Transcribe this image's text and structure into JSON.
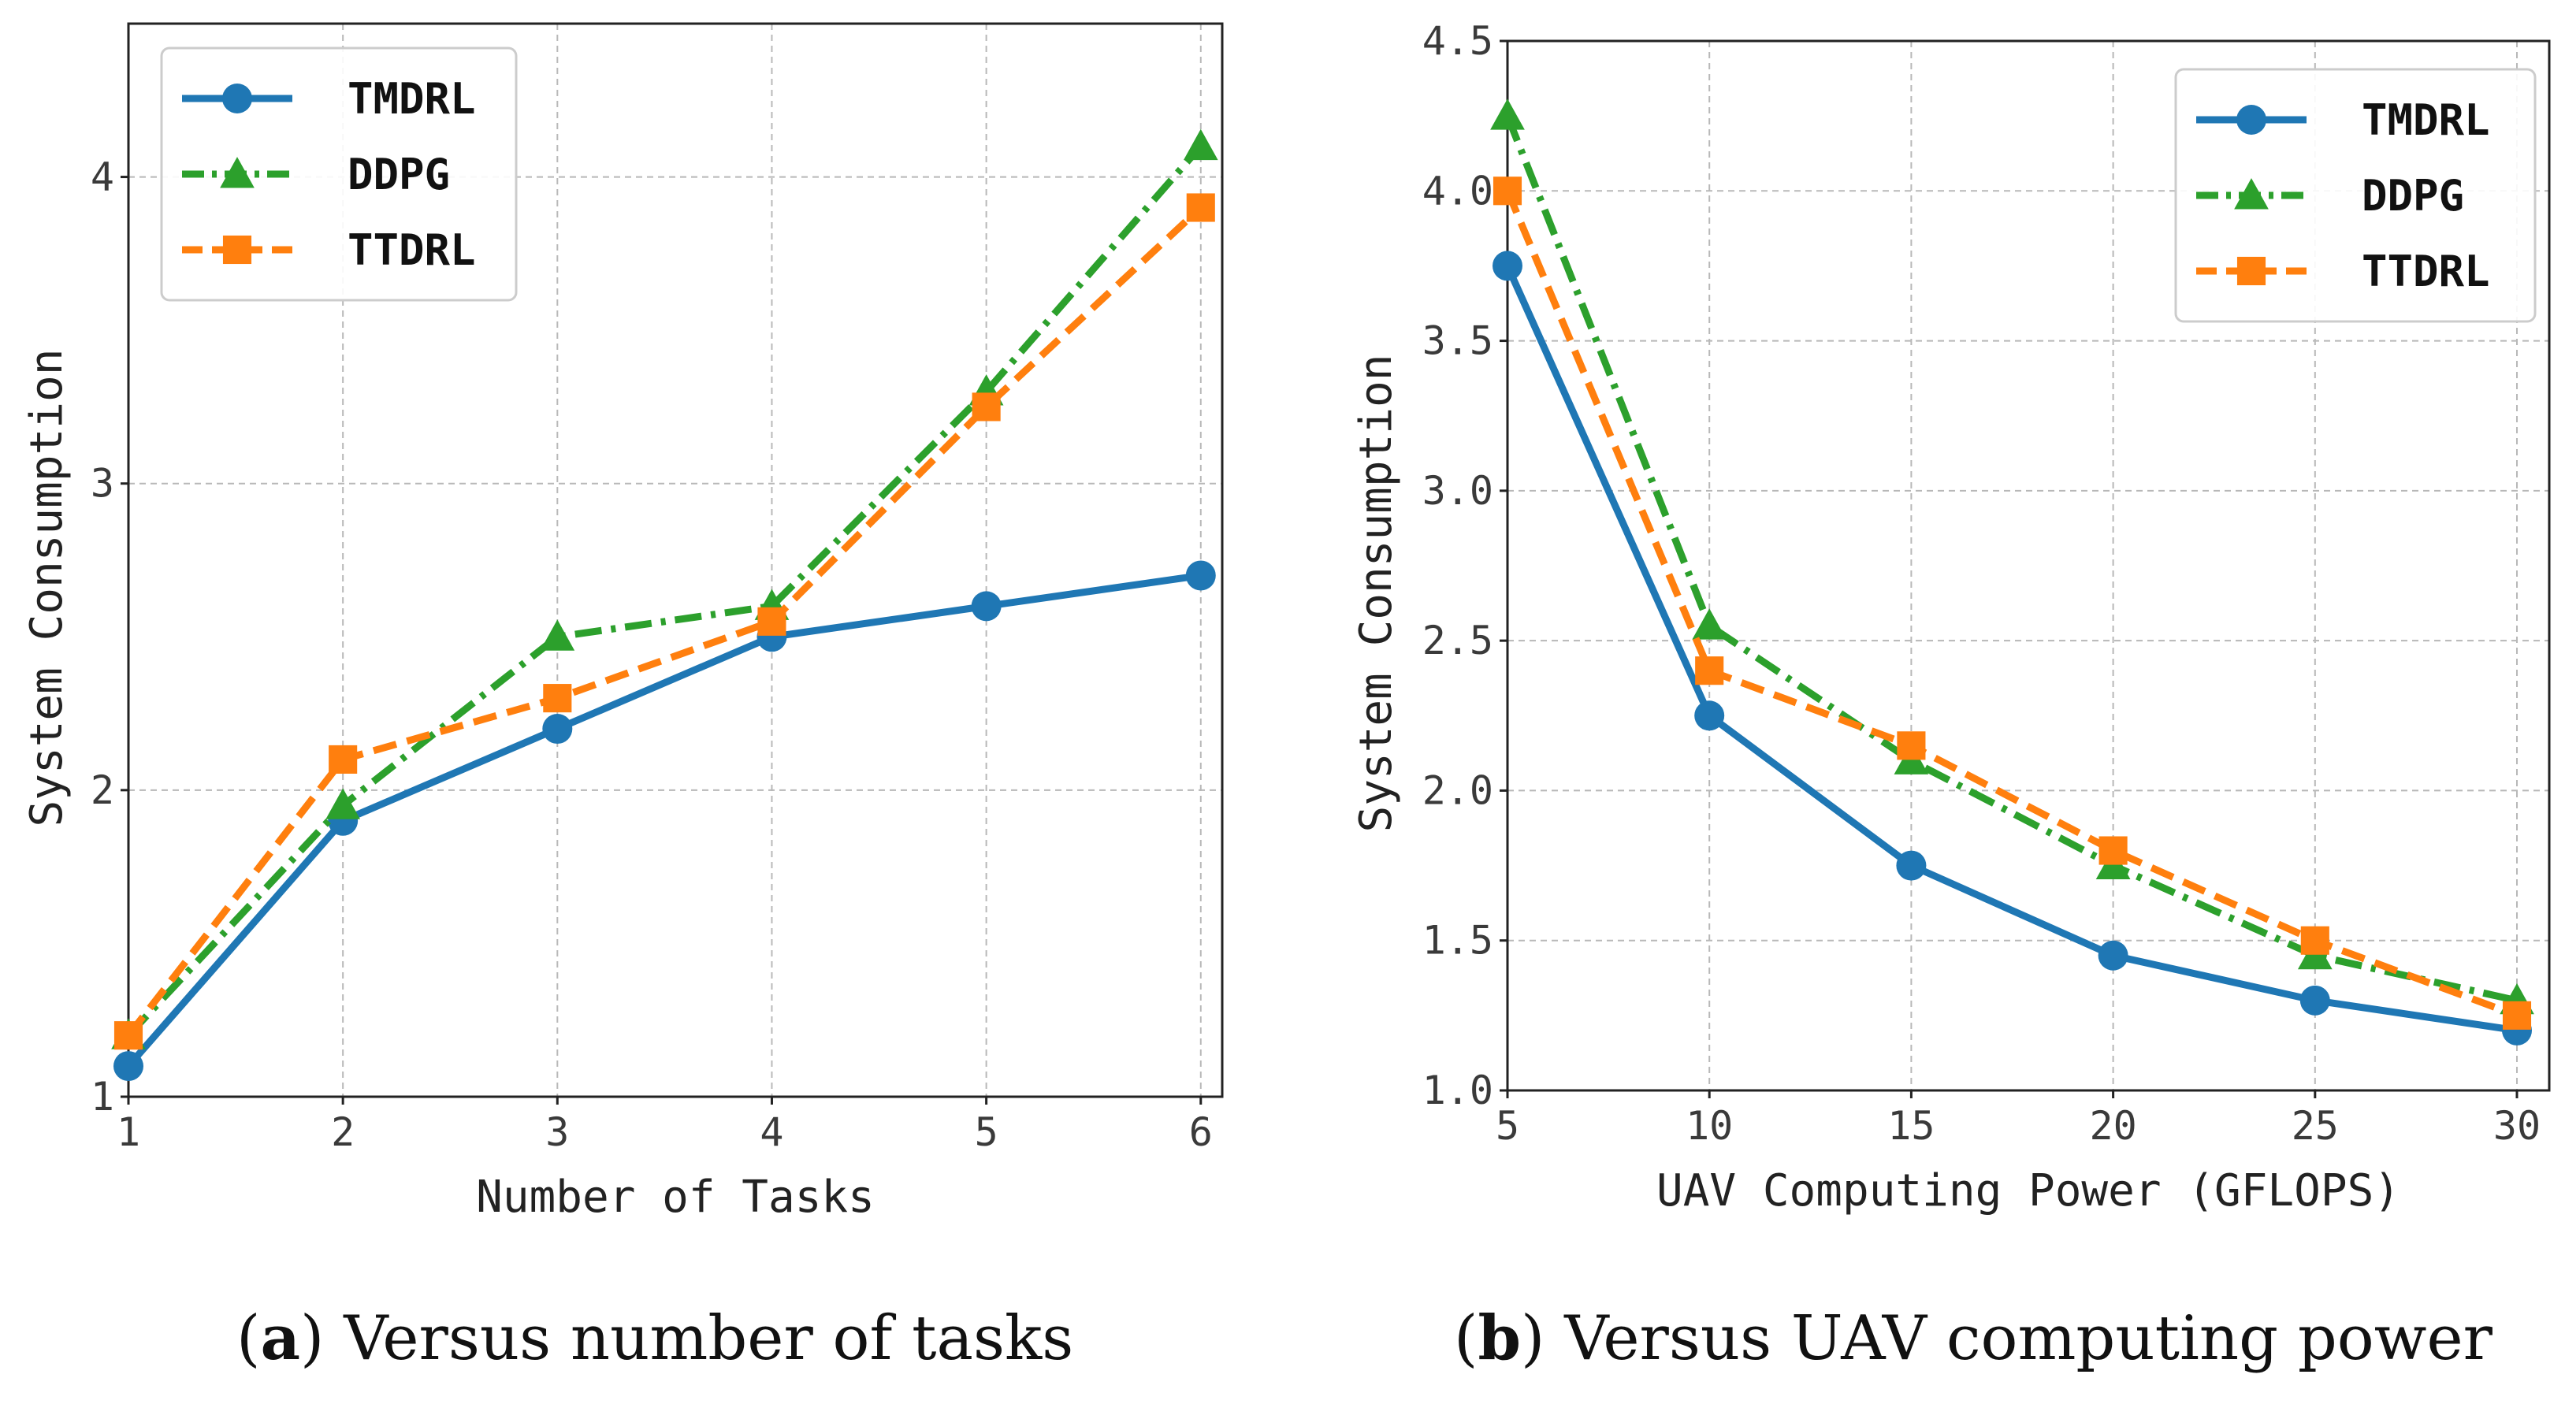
{
  "chart_data": [
    {
      "type": "line",
      "caption_label": "a",
      "caption_text": "Versus number of tasks",
      "xlabel": "Number of Tasks",
      "ylabel": "System Consumption",
      "x": [
        1,
        2,
        3,
        4,
        5,
        6
      ],
      "xlim": [
        1,
        6.1
      ],
      "ylim": [
        1,
        4.5
      ],
      "xticks": [
        "1",
        "2",
        "3",
        "4",
        "5",
        "6"
      ],
      "yticks": [
        "1",
        "2",
        "3",
        "4"
      ],
      "ytick_values": [
        1,
        2,
        3,
        4
      ],
      "grid": true,
      "legend_position": "top-left",
      "series": [
        {
          "name": "TMDRL",
          "color": "#1f77b4",
          "marker": "circle",
          "style": "solid",
          "values": [
            1.1,
            1.9,
            2.2,
            2.5,
            2.6,
            2.7
          ]
        },
        {
          "name": "DDPG",
          "color": "#2ca02c",
          "marker": "triangle",
          "style": "dashdot",
          "values": [
            1.2,
            1.95,
            2.5,
            2.6,
            3.3,
            4.1
          ]
        },
        {
          "name": "TTDRL",
          "color": "#ff7f0e",
          "marker": "square",
          "style": "dashed",
          "values": [
            1.2,
            2.1,
            2.3,
            2.55,
            3.25,
            3.9
          ]
        }
      ]
    },
    {
      "type": "line",
      "caption_label": "b",
      "caption_text": "Versus UAV computing power",
      "xlabel": "UAV Computing Power (GFLOPS)",
      "ylabel": "System Consumption",
      "x": [
        5,
        10,
        15,
        20,
        25,
        30
      ],
      "xlim": [
        5,
        30.8
      ],
      "ylim": [
        1.0,
        4.5
      ],
      "xticks": [
        "5",
        "10",
        "15",
        "20",
        "25",
        "30"
      ],
      "yticks": [
        "1.0",
        "1.5",
        "2.0",
        "2.5",
        "3.0",
        "3.5",
        "4.0",
        "4.5"
      ],
      "ytick_values": [
        1.0,
        1.5,
        2.0,
        2.5,
        3.0,
        3.5,
        4.0,
        4.5
      ],
      "grid": true,
      "legend_position": "top-right",
      "series": [
        {
          "name": "TMDRL",
          "color": "#1f77b4",
          "marker": "circle",
          "style": "solid",
          "values": [
            3.75,
            2.25,
            1.75,
            1.45,
            1.3,
            1.2
          ]
        },
        {
          "name": "DDPG",
          "color": "#2ca02c",
          "marker": "triangle",
          "style": "dashdot",
          "values": [
            4.25,
            2.55,
            2.1,
            1.75,
            1.45,
            1.3
          ]
        },
        {
          "name": "TTDRL",
          "color": "#ff7f0e",
          "marker": "square",
          "style": "dashed",
          "values": [
            4.0,
            2.4,
            2.15,
            1.8,
            1.5,
            1.25
          ]
        }
      ]
    }
  ]
}
